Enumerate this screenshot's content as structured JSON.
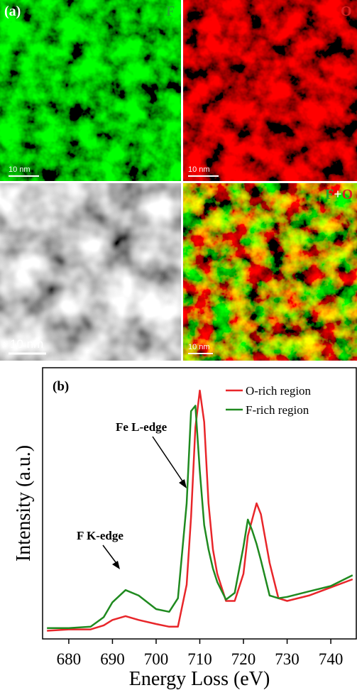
{
  "panel_a": {
    "label": "(a)",
    "maps": [
      "F",
      "O"
    ],
    "overlay_label": [
      "F",
      "+",
      "O"
    ],
    "scale_bars": [
      "10 nm",
      "10 nm",
      "10 nm",
      "10 nm"
    ]
  },
  "chart_data": {
    "type": "line",
    "panel_label": "(b)",
    "x_label": "Energy Loss (eV)",
    "y_label": "Intensity (a.u.)",
    "annotations": [
      "Fe L-edge",
      "F K-edge"
    ],
    "x": [
      675,
      680,
      685,
      688,
      690,
      693,
      696,
      700,
      703,
      705,
      707,
      708,
      709,
      710,
      711,
      712,
      713,
      714,
      716,
      718,
      720,
      721,
      722,
      723,
      724,
      726,
      728,
      730,
      735,
      740,
      745
    ],
    "series": [
      {
        "name": "O-rich region",
        "color": "#e8262a",
        "values": [
          3,
          3.5,
          3.5,
          5,
          7,
          8.4,
          7,
          5.5,
          4.5,
          4.5,
          20,
          45,
          78,
          91.6,
          80,
          50,
          33,
          24,
          14,
          14,
          24,
          38,
          44,
          50,
          46,
          28,
          15,
          14,
          16,
          19,
          22
        ]
      },
      {
        "name": "F-rich region",
        "color": "#1f8a1f",
        "values": [
          4,
          4,
          4.5,
          8,
          13.5,
          18,
          16,
          11,
          10,
          15,
          50,
          84,
          86,
          62,
          42,
          33,
          26,
          21,
          14.5,
          17,
          34,
          44,
          40,
          35,
          29,
          16,
          15,
          15.5,
          17.5,
          19.5,
          23.5
        ]
      }
    ],
    "xlim": [
      674,
      746
    ],
    "ylim": [
      0,
      100
    ],
    "xticks": [
      680,
      690,
      700,
      710,
      720,
      730,
      740
    ]
  }
}
